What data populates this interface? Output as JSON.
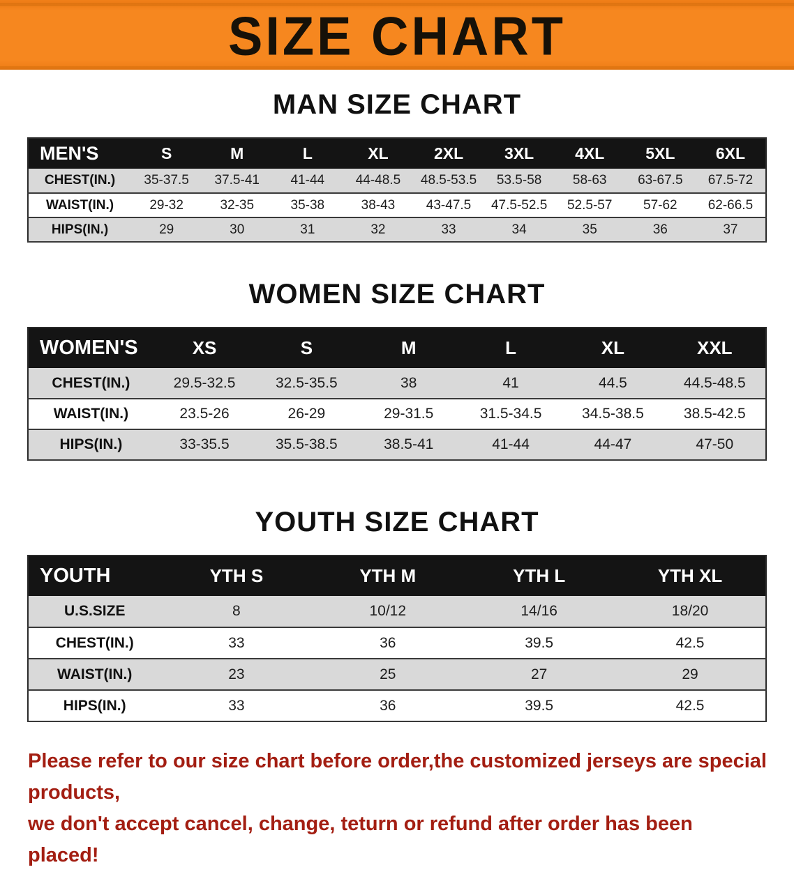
{
  "banner": {
    "title": "SIZE CHART",
    "bg_color": "#f6871f",
    "text_color": "#161108"
  },
  "sections": {
    "men_heading": "MAN SIZE CHART",
    "women_heading": "WOMEN SIZE CHART",
    "youth_heading": "YOUTH SIZE CHART"
  },
  "chart_data": [
    {
      "type": "table",
      "title": "MAN SIZE CHART",
      "columns": [
        "MEN'S",
        "S",
        "M",
        "L",
        "XL",
        "2XL",
        "3XL",
        "4XL",
        "5XL",
        "6XL"
      ],
      "rows": [
        [
          "CHEST(IN.)",
          "35-37.5",
          "37.5-41",
          "41-44",
          "44-48.5",
          "48.5-53.5",
          "53.5-58",
          "58-63",
          "63-67.5",
          "67.5-72"
        ],
        [
          "WAIST(IN.)",
          "29-32",
          "32-35",
          "35-38",
          "38-43",
          "43-47.5",
          "47.5-52.5",
          "52.5-57",
          "57-62",
          "62-66.5"
        ],
        [
          "HIPS(IN.)",
          "29",
          "30",
          "31",
          "32",
          "33",
          "34",
          "35",
          "36",
          "37"
        ]
      ]
    },
    {
      "type": "table",
      "title": "WOMEN SIZE CHART",
      "columns": [
        "WOMEN'S",
        "XS",
        "S",
        "M",
        "L",
        "XL",
        "XXL"
      ],
      "rows": [
        [
          "CHEST(IN.)",
          "29.5-32.5",
          "32.5-35.5",
          "38",
          "41",
          "44.5",
          "44.5-48.5"
        ],
        [
          "WAIST(IN.)",
          "23.5-26",
          "26-29",
          "29-31.5",
          "31.5-34.5",
          "34.5-38.5",
          "38.5-42.5"
        ],
        [
          "HIPS(IN.)",
          "33-35.5",
          "35.5-38.5",
          "38.5-41",
          "41-44",
          "44-47",
          "47-50"
        ]
      ]
    },
    {
      "type": "table",
      "title": "YOUTH SIZE CHART",
      "columns": [
        "YOUTH",
        "YTH S",
        "YTH M",
        "YTH L",
        "YTH XL"
      ],
      "rows": [
        [
          "U.S.SIZE",
          "8",
          "10/12",
          "14/16",
          "18/20"
        ],
        [
          "CHEST(IN.)",
          "33",
          "36",
          "39.5",
          "42.5"
        ],
        [
          "WAIST(IN.)",
          "23",
          "25",
          "27",
          "29"
        ],
        [
          "HIPS(IN.)",
          "33",
          "36",
          "39.5",
          "42.5"
        ]
      ]
    }
  ],
  "footer": {
    "line1": "Please refer to our size chart before order,the customized jerseys are special products,",
    "line2": "we don't accept cancel, change, teturn or refund after order has been placed!",
    "text_color": "#a31e12"
  }
}
